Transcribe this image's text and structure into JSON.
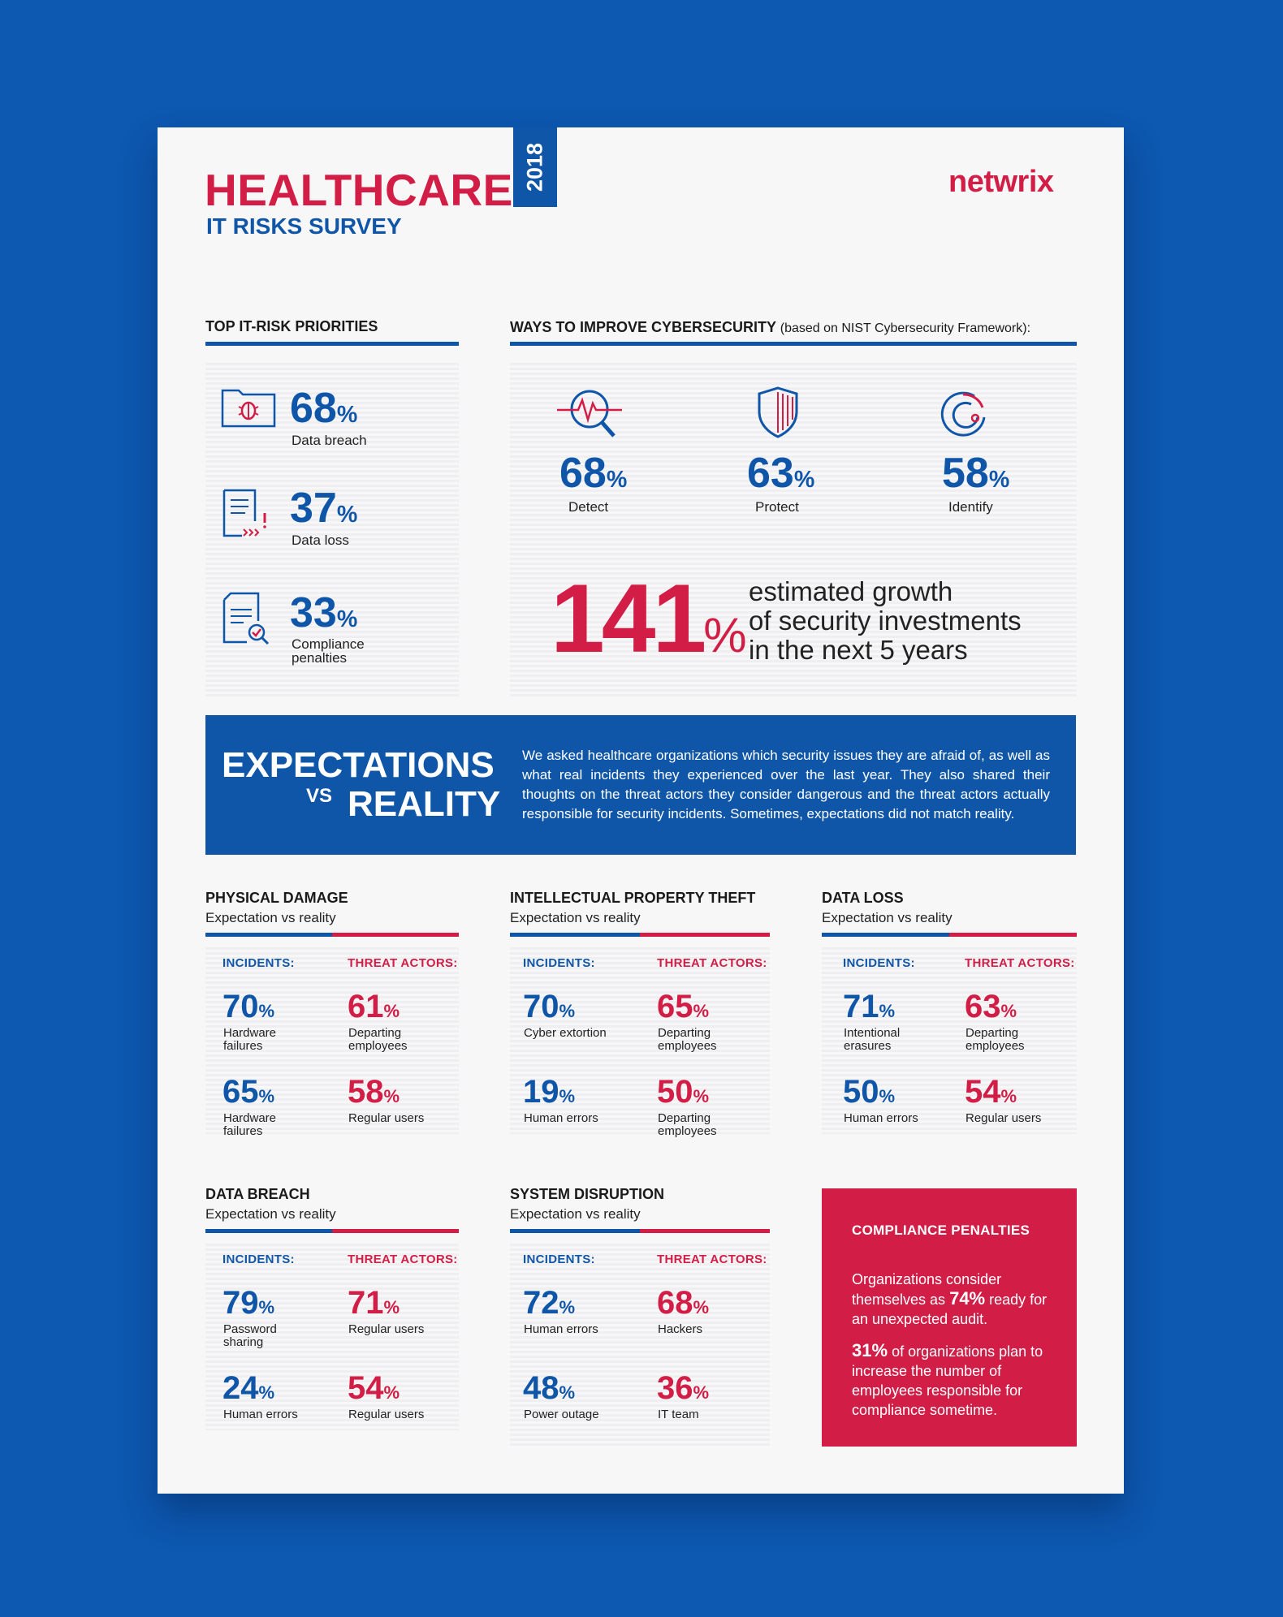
{
  "header": {
    "title": "HEALTHCARE",
    "subtitle": "IT RISKS SURVEY",
    "year": "2018",
    "logo": "netwrix"
  },
  "priorities": {
    "heading": "TOP IT-RISK PRIORITIES",
    "items": [
      {
        "value": "68",
        "unit": "%",
        "label": "Data breach",
        "icon": "bug-folder-icon"
      },
      {
        "value": "37",
        "unit": "%",
        "label": "Data loss",
        "icon": "document-alert-icon"
      },
      {
        "value": "33",
        "unit": "%",
        "label_1": "Compliance",
        "label_2": "penalties",
        "icon": "document-check-icon"
      }
    ]
  },
  "improve": {
    "heading": "WAYS TO IMPROVE CYBERSECURITY",
    "note": "(based on NIST Cybersecurity Framework):",
    "items": [
      {
        "value": "68",
        "unit": "%",
        "label": "Detect",
        "icon": "magnifier-pulse-icon"
      },
      {
        "value": "63",
        "unit": "%",
        "label": "Protect",
        "icon": "shield-icon"
      },
      {
        "value": "58",
        "unit": "%",
        "label": "Identify",
        "icon": "target-icon"
      }
    ],
    "growth": {
      "value": "141",
      "unit": "%",
      "line1": "estimated growth",
      "line2": "of security investments",
      "line3": "in the next 5 years"
    }
  },
  "banner": {
    "title1": "EXPECTATIONS",
    "vs": "VS",
    "title2": "REALITY",
    "text": "We asked healthcare organizations which security issues they are afraid of, as well as what real incidents they experienced over the last year. They also shared their thoughts on the threat actors they consider dangerous and the threat actors actually responsible for security incidents. Sometimes, expectations did not match reality."
  },
  "labels": {
    "subtitle": "Expectation vs reality",
    "incidents": "INCIDENTS:",
    "threat_actors": "THREAT ACTORS:",
    "unit": "%"
  },
  "sections": {
    "physical": {
      "title": "PHYSICAL DAMAGE",
      "inc": [
        {
          "value": "70",
          "l1": "Hardware",
          "l2": "failures"
        },
        {
          "value": "65",
          "l1": "Hardware",
          "l2": "failures"
        }
      ],
      "thr": [
        {
          "value": "61",
          "l1": "Departing",
          "l2": "employees"
        },
        {
          "value": "58",
          "l1": "Regular users",
          "l2": ""
        }
      ]
    },
    "ip": {
      "title": "INTELLECTUAL PROPERTY THEFT",
      "inc": [
        {
          "value": "70",
          "l1": "Cyber extortion",
          "l2": ""
        },
        {
          "value": "19",
          "l1": "Human errors",
          "l2": ""
        }
      ],
      "thr": [
        {
          "value": "65",
          "l1": "Departing",
          "l2": "employees"
        },
        {
          "value": "50",
          "l1": "Departing",
          "l2": "employees"
        }
      ]
    },
    "loss": {
      "title": "DATA LOSS",
      "inc": [
        {
          "value": "71",
          "l1": "Intentional",
          "l2": "erasures"
        },
        {
          "value": "50",
          "l1": "Human errors",
          "l2": ""
        }
      ],
      "thr": [
        {
          "value": "63",
          "l1": "Departing",
          "l2": "employees"
        },
        {
          "value": "54",
          "l1": "Regular users",
          "l2": ""
        }
      ]
    },
    "breach": {
      "title": "DATA BREACH",
      "inc": [
        {
          "value": "79",
          "l1": "Password",
          "l2": "sharing"
        },
        {
          "value": "24",
          "l1": "Human errors",
          "l2": ""
        }
      ],
      "thr": [
        {
          "value": "71",
          "l1": "Regular users",
          "l2": ""
        },
        {
          "value": "54",
          "l1": "Regular users",
          "l2": ""
        }
      ]
    },
    "disruption": {
      "title": "SYSTEM DISRUPTION",
      "inc": [
        {
          "value": "72",
          "l1": "Human errors",
          "l2": ""
        },
        {
          "value": "48",
          "l1": "Power outage",
          "l2": ""
        }
      ],
      "thr": [
        {
          "value": "68",
          "l1": "Hackers",
          "l2": ""
        },
        {
          "value": "36",
          "l1": "IT team",
          "l2": ""
        }
      ]
    }
  },
  "compliance": {
    "heading": "COMPLIANCE PENALTIES",
    "p1_a": "Organizations consider themselves as",
    "p1_value": "74%",
    "p1_b": "ready for an unexpected audit.",
    "p2_value": "31%",
    "p2_b": "of organizations plan to increase the number of  employees responsible for compliance sometime."
  },
  "colors": {
    "blue": "#0f56a8",
    "red": "#d21e46",
    "background": "#0d58b0"
  }
}
